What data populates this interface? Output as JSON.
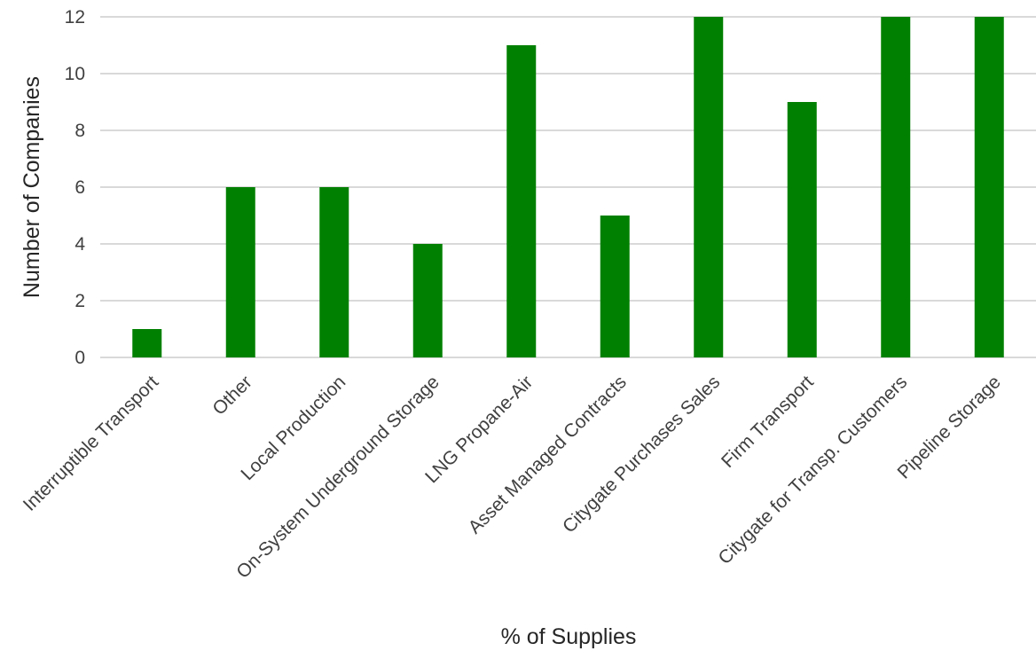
{
  "chart_data": {
    "type": "bar",
    "title": "",
    "xlabel": "% of Supplies",
    "ylabel": "Number of Companies",
    "ylim": [
      0,
      12
    ],
    "yticks": [
      0,
      2,
      4,
      6,
      8,
      10,
      12
    ],
    "grid": true,
    "legend": "none",
    "categories": [
      "Interruptible Transport",
      "Other",
      "Local Production",
      "On-System Underground Storage",
      "LNG Propane-Air",
      "Asset Managed Contracts",
      "Citygate Purchases Sales",
      "Firm Transport",
      "Citygate for Transp. Customers",
      "Pipeline Storage"
    ],
    "values": [
      1,
      6,
      6,
      4,
      11,
      5,
      12,
      9,
      12,
      12
    ],
    "colors": {
      "bar": "#008000"
    }
  }
}
